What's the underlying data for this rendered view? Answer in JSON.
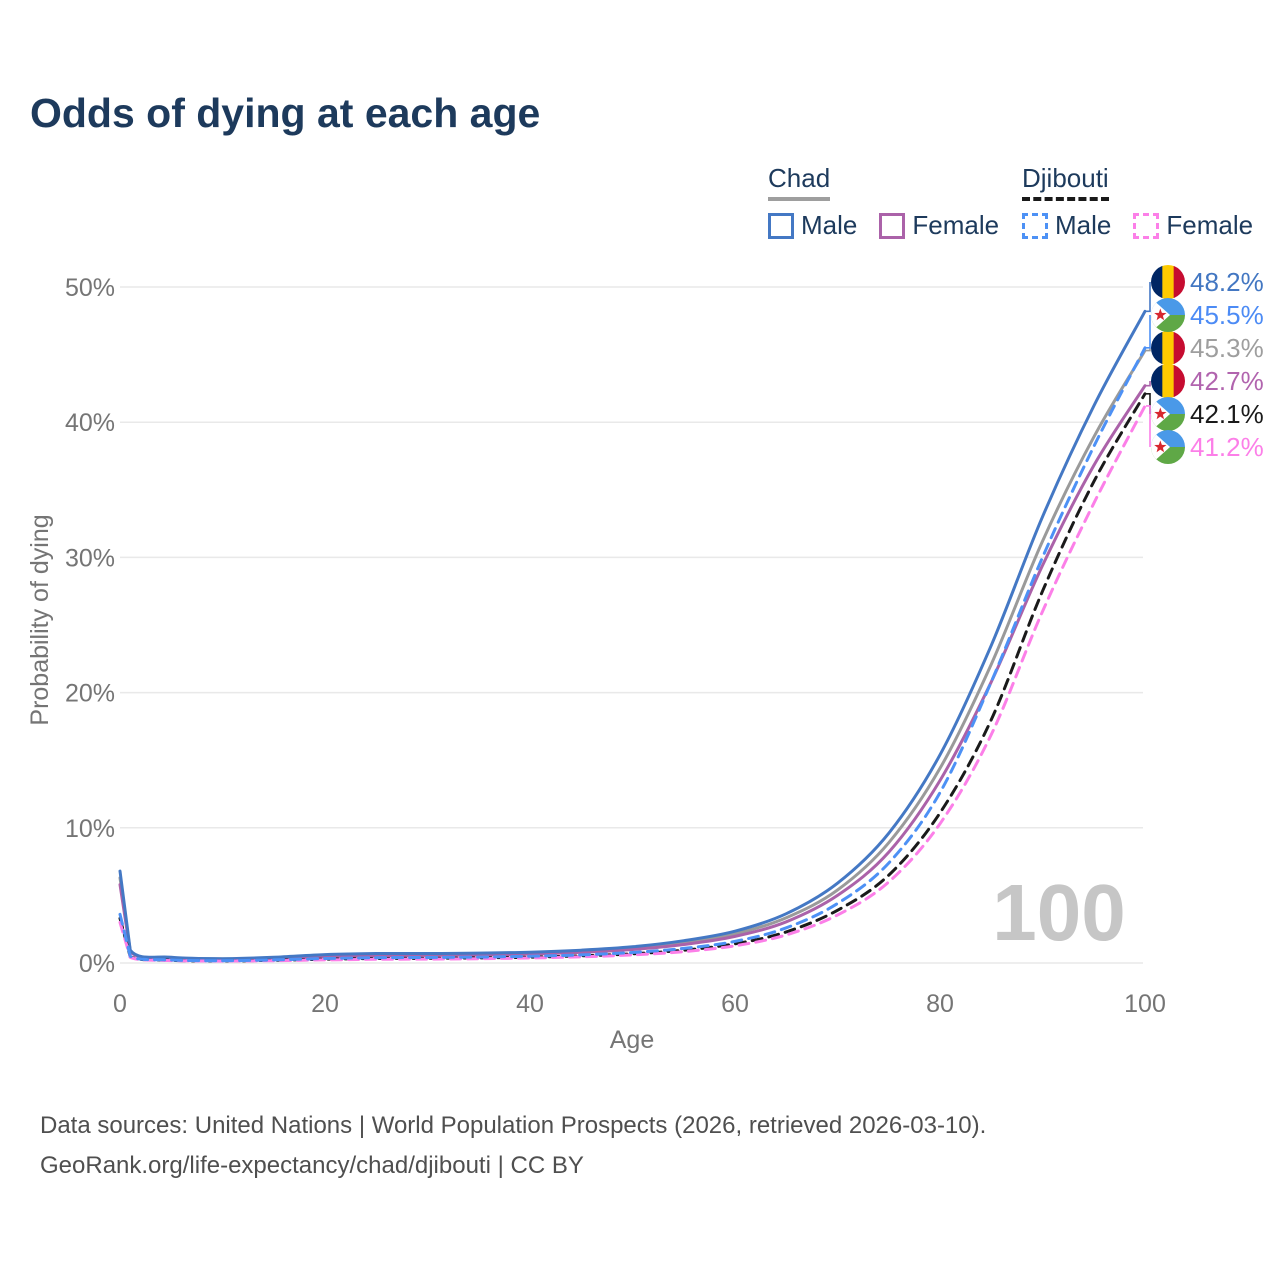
{
  "title": "Odds of dying at each age",
  "watermark_age": "100",
  "legend": {
    "groups": [
      {
        "id": "chad",
        "label": "Chad",
        "underline_style": "solid",
        "underline_color": "#9e9e9e",
        "items": [
          {
            "label": "Male",
            "color": "#4478c4",
            "dashed": false
          },
          {
            "label": "Female",
            "color": "#ab62a9",
            "dashed": false
          }
        ]
      },
      {
        "id": "djibouti",
        "label": "Djibouti",
        "underline_style": "dashed",
        "underline_color": "#1a1a1a",
        "items": [
          {
            "label": "Male",
            "color": "#4d91f5",
            "dashed": true
          },
          {
            "label": "Female",
            "color": "#fc7fe8",
            "dashed": true
          }
        ]
      }
    ]
  },
  "footer": {
    "line1": "Data sources: United Nations | World Population Prospects (2026, retrieved 2026-03-10).",
    "line2": "GeoRank.org/life-expectancy/chad/djibouti | CC BY"
  },
  "flags": {
    "chad": {
      "stripes": [
        "#002664",
        "#FECB00",
        "#C60C30"
      ]
    },
    "djibouti": {
      "top": "#4A99E8",
      "bottom": "#5FA846",
      "triangle": "#ffffff",
      "star": "#D7282F"
    }
  },
  "chart_data": {
    "type": "line",
    "title": "Odds of dying at each age",
    "xlabel": "Age",
    "ylabel": "Probability of dying",
    "xlim": [
      0,
      100
    ],
    "ylim": [
      0,
      50
    ],
    "x_ticks": [
      0,
      20,
      40,
      60,
      80,
      100
    ],
    "y_ticks": [
      {
        "value": 0,
        "label": "0%"
      },
      {
        "value": 10,
        "label": "10%"
      },
      {
        "value": 20,
        "label": "20%"
      },
      {
        "value": 30,
        "label": "30%"
      },
      {
        "value": 40,
        "label": "40%"
      },
      {
        "value": 50,
        "label": "50%"
      }
    ],
    "grid": "horizontal",
    "legend_position": "top-right",
    "x": [
      0,
      1,
      5,
      10,
      15,
      20,
      25,
      30,
      35,
      40,
      45,
      50,
      55,
      60,
      65,
      70,
      75,
      80,
      85,
      90,
      95,
      100
    ],
    "series": [
      {
        "name": "Chad Both sexes",
        "country": "chad",
        "sex": "both",
        "color": "#9a9a9a",
        "label_color": "#9e9e9e",
        "dashed": false,
        "end_label": "45.3%",
        "end_value": 45.3,
        "label_slot": 2,
        "values": [
          6.3,
          0.9,
          0.4,
          0.3,
          0.38,
          0.54,
          0.62,
          0.63,
          0.66,
          0.73,
          0.87,
          1.1,
          1.5,
          2.15,
          3.35,
          5.4,
          8.9,
          14.4,
          22.1,
          31.2,
          38.9,
          45.3
        ]
      },
      {
        "name": "Chad Female",
        "country": "chad",
        "sex": "female",
        "color": "#ab62a9",
        "label_color": "#b164ae",
        "dashed": false,
        "end_label": "42.7%",
        "end_value": 42.7,
        "label_slot": 3,
        "values": [
          5.8,
          0.85,
          0.38,
          0.28,
          0.34,
          0.47,
          0.54,
          0.56,
          0.59,
          0.66,
          0.79,
          1.0,
          1.37,
          1.97,
          3.05,
          5.0,
          8.2,
          13.5,
          20.8,
          29.4,
          36.8,
          42.7
        ]
      },
      {
        "name": "Chad Male",
        "country": "chad",
        "sex": "male",
        "color": "#4478c4",
        "label_color": "#4377c2",
        "dashed": false,
        "end_label": "48.2%",
        "end_value": 48.2,
        "label_slot": 0,
        "values": [
          6.8,
          0.95,
          0.42,
          0.32,
          0.42,
          0.62,
          0.7,
          0.7,
          0.73,
          0.8,
          0.95,
          1.2,
          1.65,
          2.35,
          3.65,
          5.9,
          9.6,
          15.4,
          23.5,
          33.0,
          41.2,
          48.2
        ]
      },
      {
        "name": "Djibouti Both sexes",
        "country": "djibouti",
        "sex": "both",
        "color": "#1a1a1a",
        "label_color": "#1a1a1a",
        "dashed": true,
        "end_label": "42.1%",
        "end_value": 42.1,
        "label_slot": 4,
        "values": [
          3.3,
          0.46,
          0.2,
          0.15,
          0.2,
          0.28,
          0.33,
          0.35,
          0.38,
          0.43,
          0.53,
          0.68,
          0.95,
          1.42,
          2.3,
          3.9,
          6.5,
          11.1,
          18.0,
          27.5,
          35.6,
          42.1
        ]
      },
      {
        "name": "Djibouti Female",
        "country": "djibouti",
        "sex": "female",
        "color": "#fc7fe8",
        "label_color": "#fc7fe8",
        "dashed": true,
        "end_label": "41.2%",
        "end_value": 41.2,
        "label_slot": 5,
        "values": [
          3.0,
          0.42,
          0.18,
          0.14,
          0.17,
          0.23,
          0.27,
          0.29,
          0.32,
          0.37,
          0.46,
          0.6,
          0.84,
          1.27,
          2.08,
          3.55,
          6.0,
          10.3,
          16.9,
          26.0,
          34.0,
          41.2
        ]
      },
      {
        "name": "Djibouti Male",
        "country": "djibouti",
        "sex": "male",
        "color": "#4d91f5",
        "label_color": "#4c8bf5",
        "dashed": true,
        "end_label": "45.5%",
        "end_value": 45.5,
        "label_slot": 1,
        "values": [
          3.6,
          0.5,
          0.22,
          0.17,
          0.23,
          0.33,
          0.39,
          0.41,
          0.44,
          0.5,
          0.6,
          0.78,
          1.08,
          1.6,
          2.6,
          4.4,
          7.4,
          12.6,
          20.8,
          30.0,
          38.2,
          45.5
        ]
      }
    ]
  }
}
